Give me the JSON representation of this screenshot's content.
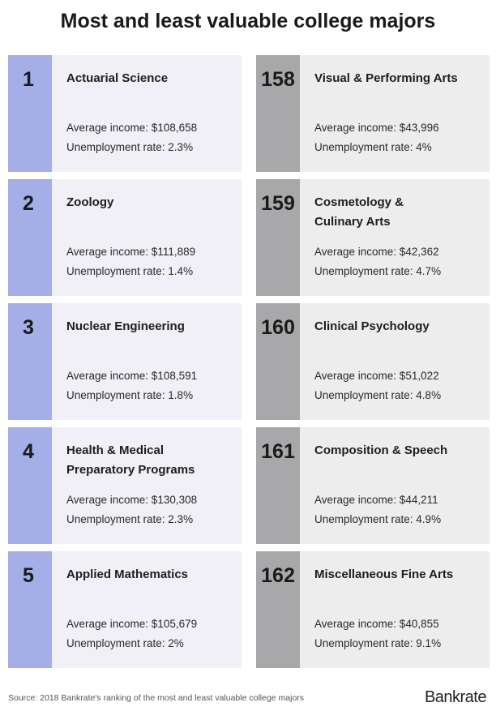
{
  "header": {
    "title": "Most and least valuable college majors"
  },
  "columns": [
    {
      "items": [
        {
          "rank": 1,
          "name": [
            "Actuarial Science"
          ],
          "income": "Average income: $108,658",
          "unemployment": "Unemployment rate: 2.3%"
        },
        {
          "rank": 2,
          "name": [
            "Zoology"
          ],
          "income": "Average income: $111,889",
          "unemployment": "Unemployment rate: 1.4%"
        },
        {
          "rank": 3,
          "name": [
            "Nuclear Engineering"
          ],
          "income": "Average income: $108,591",
          "unemployment": "Unemployment rate: 1.8%"
        },
        {
          "rank": 4,
          "name": [
            "Health & Medical",
            "Preparatory Programs"
          ],
          "income": "Average income: $130,308",
          "unemployment": "Unemployment rate: 2.3%"
        },
        {
          "rank": 5,
          "name": [
            "Applied Mathematics"
          ],
          "income": "Average income: $105,679",
          "unemployment": "Unemployment rate: 2%"
        }
      ]
    },
    {
      "items": [
        {
          "rank": 158,
          "name": [
            "Visual & Performing Arts"
          ],
          "income": "Average income: $43,996",
          "unemployment": "Unemployment rate: 4%"
        },
        {
          "rank": 159,
          "name": [
            "Cosmetology &",
            "Culinary Arts"
          ],
          "income": "Average income: $42,362",
          "unemployment": "Unemployment rate: 4.7%"
        },
        {
          "rank": 160,
          "name": [
            "Clinical Psychology"
          ],
          "income": "Average income: $51,022",
          "unemployment": "Unemployment rate: 4.8%"
        },
        {
          "rank": 161,
          "name": [
            "Composition & Speech"
          ],
          "income": "Average income: $44,211",
          "unemployment": "Unemployment rate: 4.9%"
        },
        {
          "rank": 162,
          "name": [
            "Miscellaneous Fine Arts"
          ],
          "income": "Average income: $40,855",
          "unemployment": "Unemployment rate: 9.1%"
        }
      ]
    }
  ],
  "footer": {
    "source": "Source: 2018 Bankrate's ranking of the most and least valuable college majors",
    "logo": "Bankrate"
  }
}
